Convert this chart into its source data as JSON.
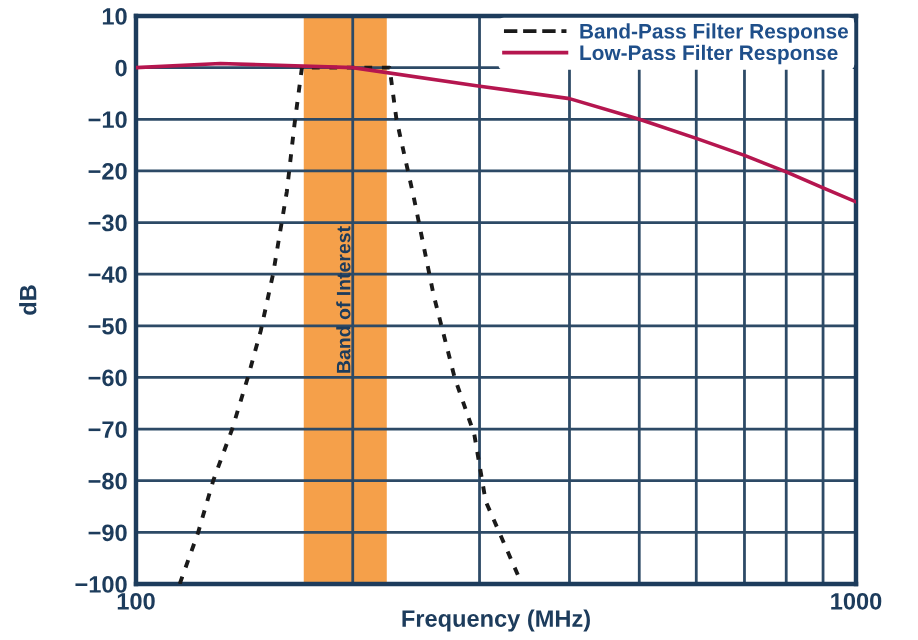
{
  "chart_data": {
    "type": "line",
    "xlabel": "Frequency (MHz)",
    "ylabel": "dB",
    "log": "x",
    "xlim": [
      100,
      1000
    ],
    "ylim": [
      -100,
      10
    ],
    "xticks": [
      100,
      {
        "value": 200,
        "label": null
      },
      {
        "value": 300,
        "label": null
      },
      {
        "value": 400,
        "label": null
      },
      {
        "value": 500,
        "label": null
      },
      {
        "value": 600,
        "label": null
      },
      {
        "value": 700,
        "label": null
      },
      {
        "value": 800,
        "label": null
      },
      {
        "value": 900,
        "label": null
      },
      1000
    ],
    "yticks": [
      -100,
      -90,
      -80,
      -70,
      -60,
      -50,
      -40,
      -30,
      -20,
      -10,
      0,
      10
    ],
    "grid": true,
    "legend": "top right",
    "bands": [
      {
        "axis": "x",
        "from": 171,
        "to": 223,
        "label": "Band of Interest",
        "color": "#f5a04a"
      }
    ],
    "series": [
      {
        "name": "Band-Pass Filter Response",
        "color": "#1a1a1a",
        "line_style": "dashed",
        "x": [
          115,
          122,
          128,
          136,
          143,
          149,
          155,
          162,
          166,
          170,
          209,
          225,
          230,
          243,
          259,
          277,
          295,
          306,
          341
        ],
        "values": [
          -100,
          -90,
          -80,
          -70,
          -60,
          -51,
          -40,
          -24,
          -11,
          0,
          0,
          0,
          -10,
          -25,
          -44,
          -60,
          -71,
          -84,
          -99
        ]
      },
      {
        "name": "Low-Pass Filter Response",
        "color": "#b5164f",
        "line_style": "solid",
        "x": [
          100,
          131,
          200,
          297,
          400,
          500,
          600,
          700,
          800,
          900,
          1000
        ],
        "values": [
          0,
          0.8,
          0,
          -3.5,
          -6,
          -10,
          -13.7,
          -17,
          -20.2,
          -23.3,
          -26
        ]
      }
    ]
  }
}
